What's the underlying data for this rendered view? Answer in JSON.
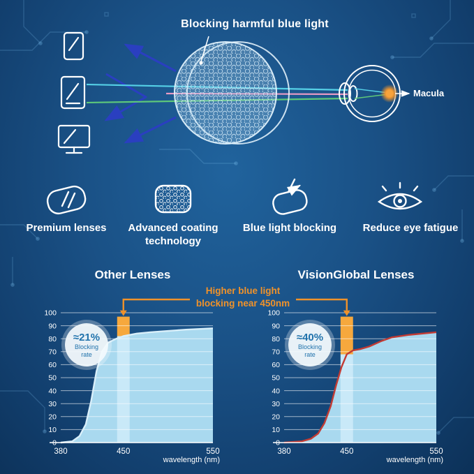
{
  "hero": {
    "title": "Blocking harmful blue light",
    "macula_label": "Macula",
    "colors": {
      "cyan_ray": "#55d0e6",
      "green_ray": "#5ec87a",
      "pink_ray": "#e79ac4",
      "blue_arrow": "#2a3fc0",
      "macula_glow": "#f0962e"
    },
    "device_icons": [
      "phone-icon",
      "tablet-icon",
      "monitor-icon"
    ]
  },
  "features": [
    {
      "icon": "premium-lens-icon",
      "label": "Premium lenses"
    },
    {
      "icon": "coating-honeycomb-icon",
      "label": "Advanced coating technology"
    },
    {
      "icon": "blue-light-blocking-icon",
      "label": "Blue light blocking"
    },
    {
      "icon": "reduce-eye-fatigue-icon",
      "label": "Reduce eye fatigue"
    }
  ],
  "comparison": {
    "annotation": {
      "line1": "Higher blue light",
      "line2": "blocking near 450nm",
      "color": "#f0922a"
    }
  },
  "chart_data": [
    {
      "type": "area",
      "title": "Other Lenses",
      "badge": {
        "value": "≈21%",
        "line1": "Blocking",
        "line2": "rate"
      },
      "xlabel": "wavelength (nm)",
      "xlim": [
        380,
        550
      ],
      "ylim": [
        0,
        100
      ],
      "x_ticks": [
        380,
        450,
        550
      ],
      "y_ticks": [
        0,
        10,
        20,
        30,
        40,
        50,
        60,
        70,
        80,
        90,
        100
      ],
      "x": [
        380,
        393,
        401,
        408,
        414,
        420,
        426,
        433,
        442,
        450,
        465,
        480,
        500,
        520,
        550
      ],
      "y": [
        0,
        1,
        5,
        14,
        32,
        55,
        70,
        77,
        80,
        82,
        84,
        85,
        86,
        87,
        88
      ],
      "highlight": {
        "x": 450,
        "width_nm": 14,
        "top": 97
      },
      "colors": {
        "area": "#a9d9ef",
        "band": "#c9e9f8",
        "band_top": "#f6a83d",
        "line": "#d9effa"
      },
      "grid": true,
      "legend": "none"
    },
    {
      "type": "area",
      "title": "VisionGlobal Lenses",
      "badge": {
        "value": "≈40%",
        "line1": "Blocking",
        "line2": "rate"
      },
      "xlabel": "wavelength (nm)",
      "xlim": [
        380,
        550
      ],
      "ylim": [
        0,
        100
      ],
      "x_ticks": [
        380,
        450,
        550
      ],
      "y_ticks": [
        0,
        10,
        20,
        30,
        40,
        50,
        60,
        70,
        80,
        90,
        100
      ],
      "x": [
        380,
        400,
        410,
        418,
        425,
        432,
        438,
        444,
        450,
        457,
        465,
        475,
        488,
        500,
        520,
        550
      ],
      "y": [
        0,
        1,
        3,
        7,
        15,
        28,
        44,
        58,
        68,
        71,
        72,
        74,
        78,
        81,
        83,
        85
      ],
      "highlight": {
        "x": 450,
        "width_nm": 14,
        "top": 97
      },
      "colors": {
        "area": "#a9d9ef",
        "band": "#c9e9f8",
        "band_top": "#f6a83d",
        "line": "#c23b34"
      },
      "grid": true,
      "legend": "none"
    }
  ]
}
